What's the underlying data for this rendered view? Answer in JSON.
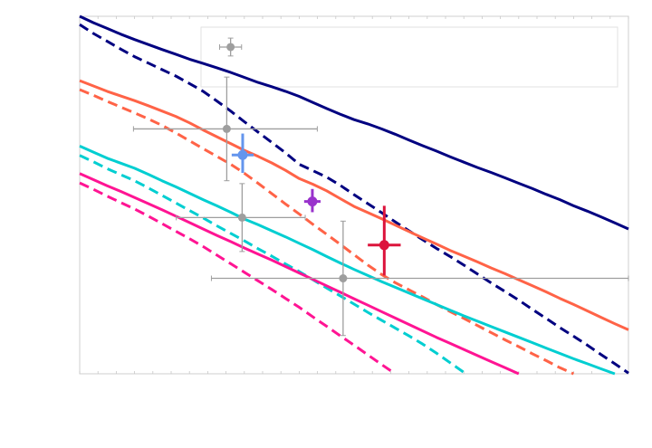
{
  "chart_data": {
    "type": "line",
    "title": "",
    "xlabel": "",
    "ylabel": "",
    "xlim": [
      0,
      100
    ],
    "ylim": [
      0,
      100
    ],
    "grid": false,
    "legend": {
      "placement": "top-right",
      "entries": []
    },
    "x": [
      0,
      2.5,
      5,
      7.5,
      10,
      12.5,
      15,
      17.5,
      20,
      22.5,
      25,
      27.5,
      30,
      32.5,
      35,
      37.5,
      40,
      42.5,
      45,
      47.5,
      50,
      52.5,
      55,
      57.5,
      60,
      62.5,
      65,
      67.5,
      70,
      72.5,
      75,
      77.5,
      80,
      82.5,
      85,
      87.5,
      90,
      92.5,
      95,
      97.5,
      100
    ],
    "series": [
      {
        "color": "#000080",
        "style": "solid",
        "values": [
          100,
          98.2,
          96.6,
          95.0,
          93.5,
          92.1,
          90.7,
          89.4,
          88.0,
          86.8,
          85.6,
          84.3,
          82.9,
          81.5,
          80.3,
          79.0,
          77.6,
          75.9,
          74.2,
          72.6,
          71.1,
          69.9,
          68.5,
          67.0,
          65.4,
          63.8,
          62.3,
          60.7,
          59.2,
          57.7,
          56.3,
          54.8,
          53.3,
          51.8,
          50.2,
          48.7,
          47.0,
          45.5,
          43.9,
          42.2,
          40.5
        ]
      },
      {
        "color": "#000080",
        "style": "dashed",
        "values": [
          97.7,
          95.2,
          93.0,
          90.8,
          88.7,
          86.9,
          85.1,
          83.3,
          81.2,
          79.0,
          76.3,
          73.5,
          70.5,
          67.6,
          64.7,
          61.8,
          58.6,
          56.8,
          55.0,
          52.7,
          50.1,
          47.6,
          45.1,
          42.5,
          40.0,
          37.5,
          35.1,
          32.8,
          30.4,
          27.9,
          25.4,
          23.0,
          20.6,
          18.0,
          15.5,
          12.9,
          10.5,
          8.0,
          5.4,
          2.8,
          0.2
        ]
      },
      {
        "color": "#ff6347",
        "style": "solid",
        "values": [
          82.0,
          80.5,
          79.0,
          77.7,
          76.4,
          75.0,
          73.5,
          72.0,
          70.2,
          68.2,
          66.3,
          64.4,
          62.5,
          60.8,
          59.0,
          56.9,
          54.6,
          53.0,
          51.2,
          49.0,
          46.8,
          45.1,
          43.4,
          41.6,
          39.8,
          38.0,
          36.3,
          34.5,
          32.9,
          31.3,
          29.6,
          28.0,
          26.3,
          24.6,
          22.9,
          21.1,
          19.4,
          17.6,
          15.8,
          14.0,
          12.3
        ]
      },
      {
        "color": "#ff6347",
        "style": "dashed",
        "values": [
          79.5,
          77.9,
          76.2,
          74.6,
          73.0,
          71.3,
          69.5,
          67.4,
          65.2,
          63.0,
          60.8,
          58.6,
          56.1,
          53.3,
          50.4,
          47.5,
          44.7,
          41.8,
          39.0,
          36.2,
          33.3,
          30.4,
          27.8,
          25.5,
          23.5,
          21.5,
          19.4,
          17.4,
          15.5,
          13.5,
          11.5,
          9.5,
          7.6,
          5.6,
          3.7,
          1.7,
          0,
          null,
          null,
          null,
          null
        ]
      },
      {
        "color": "#00ced1",
        "style": "solid",
        "values": [
          63.7,
          62.0,
          60.3,
          58.9,
          57.5,
          55.8,
          54.0,
          52.3,
          50.5,
          48.7,
          47.0,
          45.2,
          43.3,
          41.7,
          40.0,
          38.3,
          36.5,
          34.7,
          32.8,
          31.0,
          29.2,
          27.5,
          25.8,
          24.2,
          22.6,
          21.0,
          19.4,
          17.8,
          16.2,
          14.7,
          13.2,
          11.7,
          10.2,
          8.7,
          7.2,
          5.7,
          4.2,
          2.8,
          1.4,
          0,
          null
        ]
      },
      {
        "color": "#00ced1",
        "style": "dashed",
        "values": [
          61.1,
          59.3,
          57.4,
          55.7,
          54.0,
          52.0,
          49.9,
          47.8,
          45.7,
          43.6,
          41.4,
          39.3,
          37.2,
          35.0,
          32.9,
          30.7,
          28.6,
          26.3,
          24.0,
          21.8,
          19.5,
          17.2,
          15.0,
          12.8,
          10.6,
          8.3,
          5.8,
          3.1,
          0.4,
          null,
          null,
          null,
          null,
          null,
          null,
          null,
          null,
          null,
          null,
          null,
          null
        ]
      },
      {
        "color": "#ff1493",
        "style": "solid",
        "values": [
          56.0,
          54.3,
          52.6,
          51.0,
          49.3,
          47.6,
          45.9,
          44.1,
          42.3,
          40.5,
          38.7,
          37.0,
          35.2,
          33.5,
          31.8,
          30.0,
          28.2,
          26.4,
          24.6,
          22.8,
          21.0,
          19.2,
          17.4,
          15.6,
          13.8,
          12.0,
          10.2,
          8.5,
          6.8,
          5.1,
          3.4,
          1.7,
          0,
          null,
          null,
          null,
          null,
          null,
          null,
          null,
          null
        ]
      },
      {
        "color": "#ff1493",
        "style": "dashed",
        "values": [
          53.4,
          51.6,
          49.7,
          47.9,
          46.1,
          44.1,
          42.0,
          39.9,
          37.8,
          35.6,
          33.2,
          30.8,
          28.4,
          26.0,
          23.6,
          21.1,
          18.6,
          15.9,
          13.3,
          10.6,
          8.0,
          5.3,
          2.6,
          0,
          null,
          null,
          null,
          null,
          null,
          null,
          null,
          null,
          null,
          null,
          null,
          null,
          null,
          null,
          null,
          null,
          null
        ]
      }
    ],
    "points": [
      {
        "color": "#9e9e9e",
        "x": 27.5,
        "y": 91.4,
        "xerr": [
          2.0,
          2.0
        ],
        "yerr": [
          2.5,
          2.5
        ],
        "marker": "circle"
      },
      {
        "color": "#9e9e9e",
        "x": 26.8,
        "y": 68.5,
        "xerr": [
          17.0,
          16.5
        ],
        "yerr": [
          14.5,
          14.5
        ],
        "marker": "circle"
      },
      {
        "color": "#6495ed",
        "x": 29.7,
        "y": 61.2,
        "xerr": [
          2.0,
          2.0
        ],
        "yerr": [
          5.0,
          6.0
        ],
        "marker": "plus"
      },
      {
        "color": "#9e9e9e",
        "x": 29.6,
        "y": 43.7,
        "xerr": [
          12.0,
          11.5
        ],
        "yerr": [
          9.5,
          9.5
        ],
        "marker": "circle"
      },
      {
        "color": "#9932cc",
        "x": 42.4,
        "y": 48.2,
        "xerr": [
          1.5,
          1.5
        ],
        "yerr": [
          3.0,
          3.5
        ],
        "marker": "plus"
      },
      {
        "color": "#9e9e9e",
        "x": 48.0,
        "y": 26.7,
        "xerr": [
          24.0,
          52.0
        ],
        "yerr": [
          16.0,
          16.0
        ],
        "marker": "circle"
      },
      {
        "color": "#dc143c",
        "x": 55.5,
        "y": 36.0,
        "xerr": [
          3.0,
          3.0
        ],
        "yerr": [
          8.5,
          11.0
        ],
        "marker": "plus"
      }
    ]
  }
}
